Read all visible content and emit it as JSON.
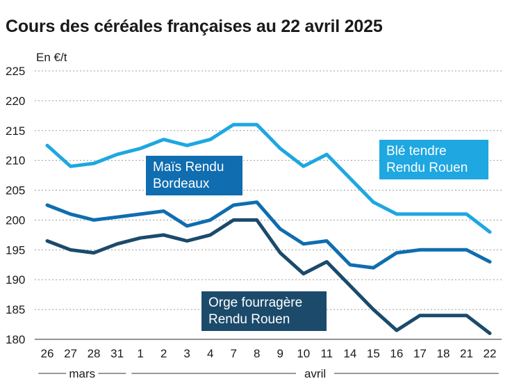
{
  "title": "Cours des céréales françaises au 22 avril 2025",
  "chart_data": {
    "type": "line",
    "title": "Cours des céréales françaises au 22 avril 2025",
    "ylabel": "En €/t",
    "xlabel": "",
    "ylim": [
      180,
      225
    ],
    "yticks": [
      "180",
      "185",
      "190",
      "195",
      "200",
      "205",
      "210",
      "215",
      "220",
      "225"
    ],
    "categories": [
      "26",
      "27",
      "28",
      "31",
      "1",
      "2",
      "3",
      "4",
      "7",
      "8",
      "9",
      "10",
      "11",
      "14",
      "15",
      "16",
      "17",
      "18",
      "21",
      "22"
    ],
    "months": [
      {
        "name": "mars",
        "from": 0,
        "to": 3
      },
      {
        "name": "avril",
        "from": 4,
        "to": 19
      }
    ],
    "grid": true,
    "series": [
      {
        "name": "Blé tendre Rendu Rouen",
        "label_lines": [
          "Blé tendre",
          "Rendu Rouen"
        ],
        "color": "#1ea7e1",
        "label_color": "#1ea7e1",
        "values": [
          212.5,
          209,
          209.5,
          211,
          212,
          213.5,
          212.5,
          213.5,
          216,
          216,
          212,
          209,
          211,
          207,
          203,
          201,
          201,
          201,
          201,
          198
        ]
      },
      {
        "name": "Maïs Rendu Bordeaux",
        "label_lines": [
          "Maïs Rendu",
          "Bordeaux"
        ],
        "color": "#0f6db0",
        "label_color": "#0f6db0",
        "values": [
          202.5,
          201,
          200,
          200.5,
          201,
          201.5,
          199,
          200,
          202.5,
          203,
          198.5,
          196,
          196.5,
          192.5,
          192,
          194.5,
          195,
          195,
          195,
          193
        ]
      },
      {
        "name": "Orge fourragère Rendu Rouen",
        "label_lines": [
          "Orge fourragère",
          "Rendu Rouen"
        ],
        "color": "#1b4a6b",
        "label_color": "#1b4a6b",
        "values": [
          196.5,
          195,
          194.5,
          196,
          197,
          197.5,
          196.5,
          197.5,
          200,
          200,
          194.5,
          191,
          193,
          189,
          185,
          181.5,
          184,
          184,
          184,
          181
        ]
      }
    ]
  }
}
